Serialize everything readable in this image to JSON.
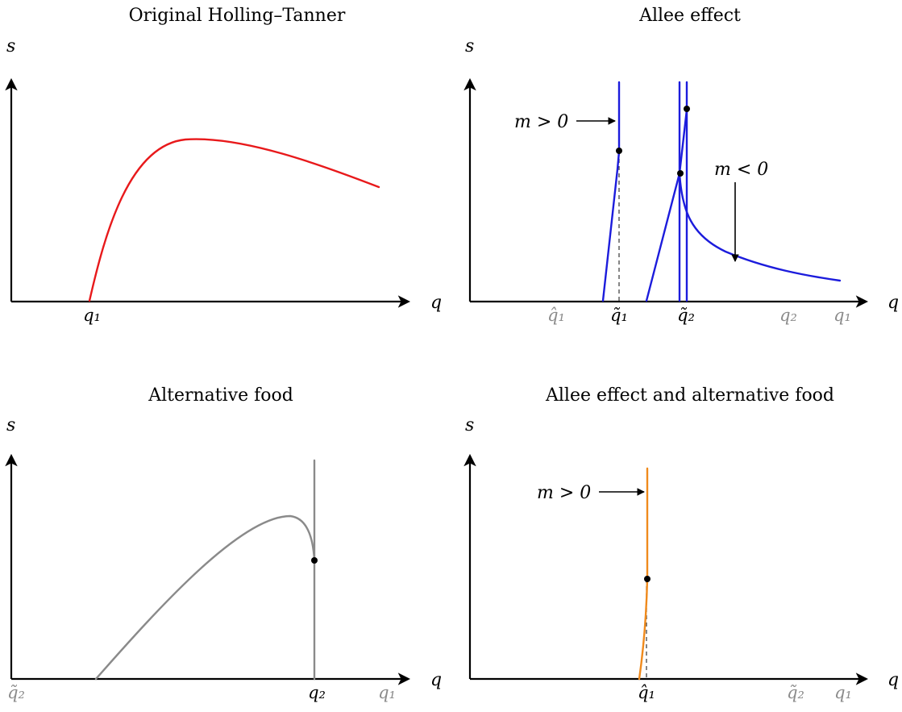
{
  "panels": {
    "p1": {
      "title": "Original Holling–Tanner",
      "y_label": "s",
      "x_label": "q",
      "ticks": [
        {
          "text": "q₁",
          "color": "black"
        }
      ],
      "curve_color": "#e8191b"
    },
    "p2": {
      "title": "Allee effect",
      "y_label": "s",
      "x_label": "q",
      "ticks": [
        {
          "text": "q̂₁",
          "color": "grey"
        },
        {
          "text": "q̃₁",
          "color": "black"
        },
        {
          "text": "q̃₂",
          "color": "black"
        },
        {
          "text": "q₂",
          "color": "grey"
        },
        {
          "text": "q₁",
          "color": "grey"
        }
      ],
      "annotations": {
        "m_pos": "m > 0",
        "m_neg": "m < 0"
      },
      "curve_color": "#1c1cdc"
    },
    "p3": {
      "title": "Alternative food",
      "y_label": "s",
      "x_label": "q",
      "ticks": [
        {
          "text": "q̃₂",
          "color": "grey"
        },
        {
          "text": "q₂",
          "color": "black"
        },
        {
          "text": "q₁",
          "color": "grey"
        }
      ],
      "curve_color": "#8a8a8a"
    },
    "p4": {
      "title": "Allee effect and alternative food",
      "y_label": "s",
      "x_label": "q",
      "ticks": [
        {
          "text": "q̂₁",
          "color": "black"
        },
        {
          "text": "q̃₂",
          "color": "grey"
        },
        {
          "text": "q₁",
          "color": "grey"
        }
      ],
      "annotations": {
        "m_pos": "m > 0"
      },
      "curve_color": "#f08a1c"
    }
  },
  "colors": {
    "black": "#000000",
    "grey": "#8c8c8c"
  }
}
